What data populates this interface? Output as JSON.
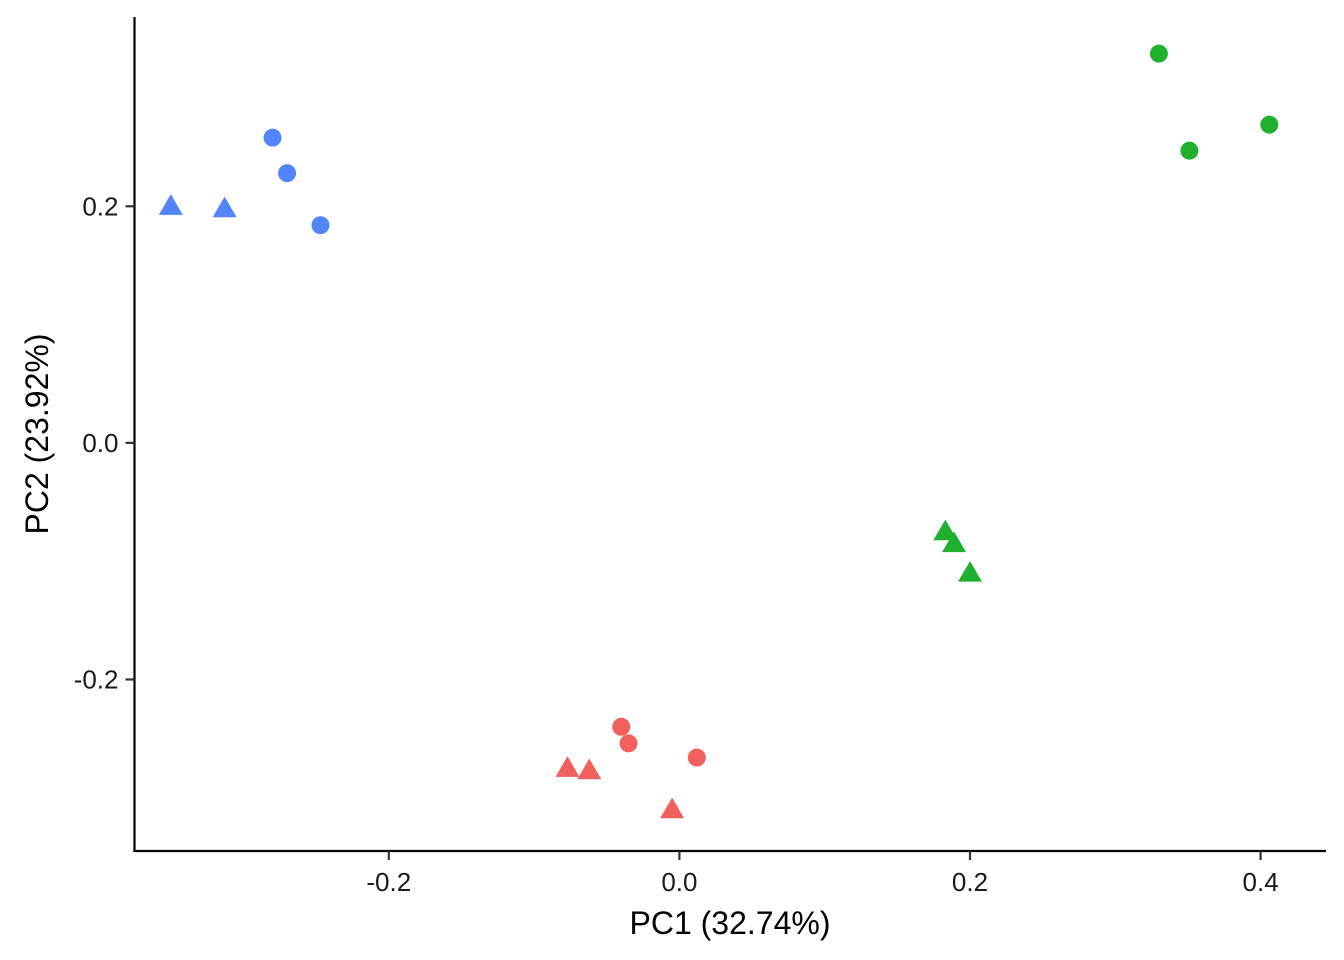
{
  "chart_data": {
    "type": "scatter",
    "title": "",
    "xlabel": "PC1 (32.74%)",
    "ylabel": "PC2 (23.92%)",
    "xlim": [
      -0.375,
      0.445
    ],
    "ylim": [
      -0.345,
      0.36
    ],
    "x_ticks": [
      -0.2,
      0.0,
      0.2,
      0.4
    ],
    "x_tick_labels": [
      "-0.2",
      "0.0",
      "0.2",
      "0.4"
    ],
    "y_ticks": [
      -0.2,
      0.0,
      0.2
    ],
    "y_tick_labels": [
      "-0.2",
      "0.0",
      "0.2"
    ],
    "grid": false,
    "legend": "none",
    "series": [
      {
        "color": "#5284fb",
        "shape": "circle",
        "points": [
          {
            "x": -0.28,
            "y": 0.258
          },
          {
            "x": -0.27,
            "y": 0.228
          },
          {
            "x": -0.247,
            "y": 0.184
          }
        ]
      },
      {
        "color": "#5284fb",
        "shape": "triangle",
        "points": [
          {
            "x": -0.35,
            "y": 0.2
          },
          {
            "x": -0.313,
            "y": 0.198
          }
        ]
      },
      {
        "color": "#1fb12e",
        "shape": "circle",
        "points": [
          {
            "x": 0.33,
            "y": 0.329
          },
          {
            "x": 0.351,
            "y": 0.247
          },
          {
            "x": 0.406,
            "y": 0.269
          }
        ]
      },
      {
        "color": "#1fb12e",
        "shape": "triangle",
        "points": [
          {
            "x": 0.183,
            "y": -0.075
          },
          {
            "x": 0.189,
            "y": -0.085
          },
          {
            "x": 0.2,
            "y": -0.11
          }
        ]
      },
      {
        "color": "#f1605d",
        "shape": "circle",
        "points": [
          {
            "x": -0.04,
            "y": -0.24
          },
          {
            "x": -0.035,
            "y": -0.254
          },
          {
            "x": 0.012,
            "y": -0.266
          }
        ]
      },
      {
        "color": "#f1605d",
        "shape": "triangle",
        "points": [
          {
            "x": -0.077,
            "y": -0.275
          },
          {
            "x": -0.062,
            "y": -0.277
          },
          {
            "x": -0.005,
            "y": -0.31
          }
        ]
      }
    ]
  }
}
